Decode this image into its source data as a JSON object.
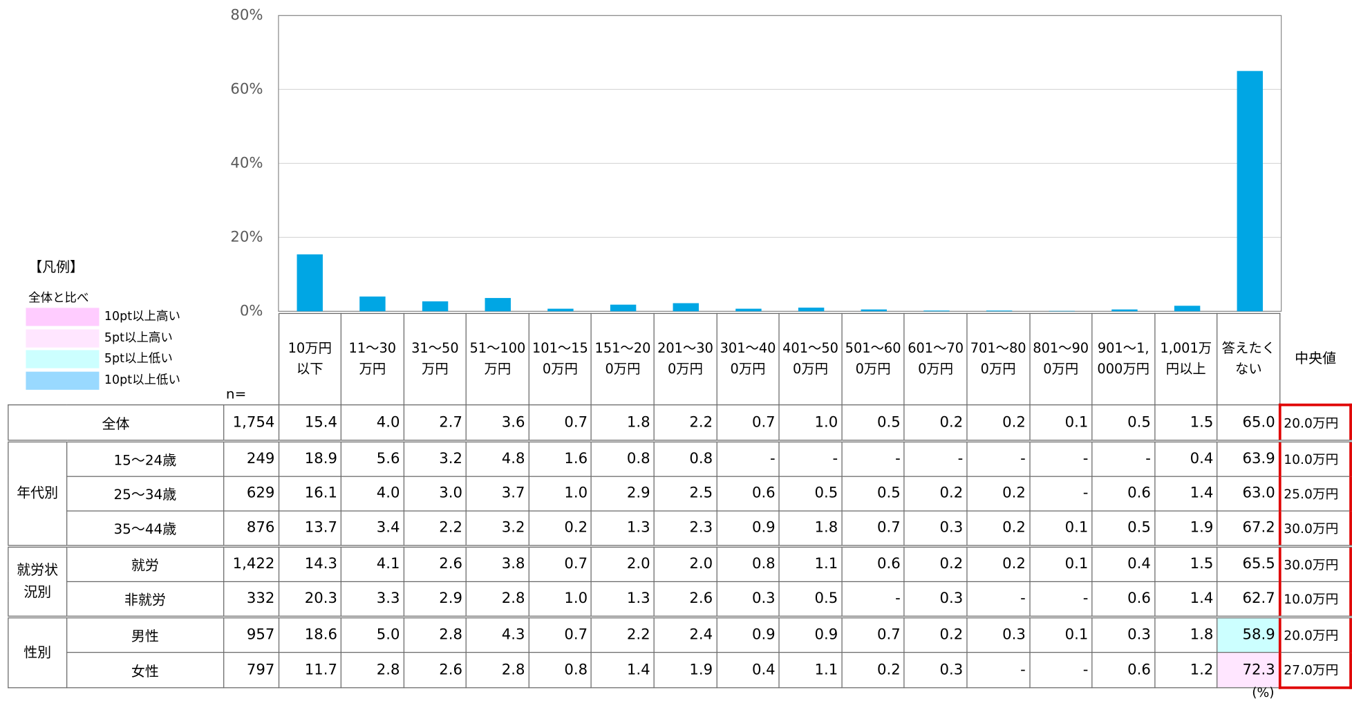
{
  "chart_data": {
    "type": "bar",
    "color": "#00a6e4",
    "categories": [
      "10万円以下",
      "11～30万円",
      "31～50万円",
      "51～100万円",
      "101～150万円",
      "151～200万円",
      "201～300万円",
      "301～400万円",
      "401～500万円",
      "501～600万円",
      "601～700万円",
      "701～800万円",
      "801～900万円",
      "901～1,000万円",
      "1,001万円以上",
      "答えたくない"
    ],
    "values": [
      15.4,
      4.0,
      2.7,
      3.6,
      0.7,
      1.8,
      2.2,
      0.7,
      1.0,
      0.5,
      0.2,
      0.2,
      0.1,
      0.5,
      1.5,
      65.0
    ],
    "value_labels": [
      "15.4",
      "4.0",
      "2.7",
      "3.6",
      "0.7",
      "1.8",
      "2.2",
      "0.7",
      "1.0",
      "0.5",
      "0.2",
      "0.2",
      "0.1",
      "0.5",
      "1.5",
      "65.0"
    ],
    "ylim": [
      0,
      80
    ],
    "yticks": [
      {
        "value": 0,
        "label": "0%"
      },
      {
        "value": 20,
        "label": "20%"
      },
      {
        "value": 40,
        "label": "40%"
      },
      {
        "value": 60,
        "label": "60%"
      },
      {
        "value": 80,
        "label": "80%"
      }
    ],
    "grid": true
  },
  "legend": {
    "title": "【凡例】",
    "subtitle": "全体と比べ",
    "items": [
      {
        "label": "10pt以上高い",
        "color": "#ffccff"
      },
      {
        "label": "5pt以上高い",
        "color": "#ffe6ff"
      },
      {
        "label": "5pt以上低い",
        "color": "#ccffff"
      },
      {
        "label": "10pt以上低い",
        "color": "#99d9ff"
      }
    ]
  },
  "table": {
    "n_header": "n=",
    "median_header": "中央値",
    "unit": "(%)",
    "median_border": "#e00000",
    "total": {
      "label": "全体",
      "n": "1,754",
      "median": "20.0万円"
    },
    "groups": [
      {
        "label": "年代別",
        "rows": [
          {
            "label": "15～24歳",
            "n": "249",
            "values": [
              "18.9",
              "5.6",
              "3.2",
              "4.8",
              "1.6",
              "0.8",
              "0.8",
              "-",
              "-",
              "-",
              "-",
              "-",
              "-",
              "-",
              "0.4",
              "63.9"
            ],
            "median": "10.0万円"
          },
          {
            "label": "25～34歳",
            "n": "629",
            "values": [
              "16.1",
              "4.0",
              "3.0",
              "3.7",
              "1.0",
              "2.9",
              "2.5",
              "0.6",
              "0.5",
              "0.5",
              "0.2",
              "0.2",
              "-",
              "0.6",
              "1.4",
              "63.0"
            ],
            "median": "25.0万円"
          },
          {
            "label": "35～44歳",
            "n": "876",
            "values": [
              "13.7",
              "3.4",
              "2.2",
              "3.2",
              "0.2",
              "1.3",
              "2.3",
              "0.9",
              "1.8",
              "0.7",
              "0.3",
              "0.2",
              "0.1",
              "0.5",
              "1.9",
              "67.2"
            ],
            "median": "30.0万円"
          }
        ]
      },
      {
        "label": "就労状況別",
        "rows": [
          {
            "label": "就労",
            "n": "1,422",
            "values": [
              "14.3",
              "4.1",
              "2.6",
              "3.8",
              "0.7",
              "2.0",
              "2.0",
              "0.8",
              "1.1",
              "0.6",
              "0.2",
              "0.2",
              "0.1",
              "0.4",
              "1.5",
              "65.5"
            ],
            "median": "30.0万円"
          },
          {
            "label": "非就労",
            "n": "332",
            "values": [
              "20.3",
              "3.3",
              "2.9",
              "2.8",
              "1.0",
              "1.3",
              "2.6",
              "0.3",
              "0.5",
              "-",
              "0.3",
              "-",
              "-",
              "0.6",
              "1.4",
              "62.7"
            ],
            "median": "10.0万円"
          }
        ]
      },
      {
        "label": "性別",
        "rows": [
          {
            "label": "男性",
            "n": "957",
            "values": [
              "18.6",
              "5.0",
              "2.8",
              "4.3",
              "0.7",
              "2.2",
              "2.4",
              "0.9",
              "0.9",
              "0.7",
              "0.2",
              "0.3",
              "0.1",
              "0.3",
              "1.8",
              "58.9"
            ],
            "median": "20.0万円",
            "cell_colors": [
              null,
              null,
              null,
              null,
              null,
              null,
              null,
              null,
              null,
              null,
              null,
              null,
              null,
              null,
              null,
              "#ccffff"
            ]
          },
          {
            "label": "女性",
            "n": "797",
            "values": [
              "11.7",
              "2.8",
              "2.6",
              "2.8",
              "0.8",
              "1.4",
              "1.9",
              "0.4",
              "1.1",
              "0.2",
              "0.3",
              "-",
              "-",
              "0.6",
              "1.2",
              "72.3"
            ],
            "median": "27.0万円",
            "cell_colors": [
              null,
              null,
              null,
              null,
              null,
              null,
              null,
              null,
              null,
              null,
              null,
              null,
              null,
              null,
              null,
              "#ffe6ff"
            ]
          }
        ]
      }
    ]
  }
}
